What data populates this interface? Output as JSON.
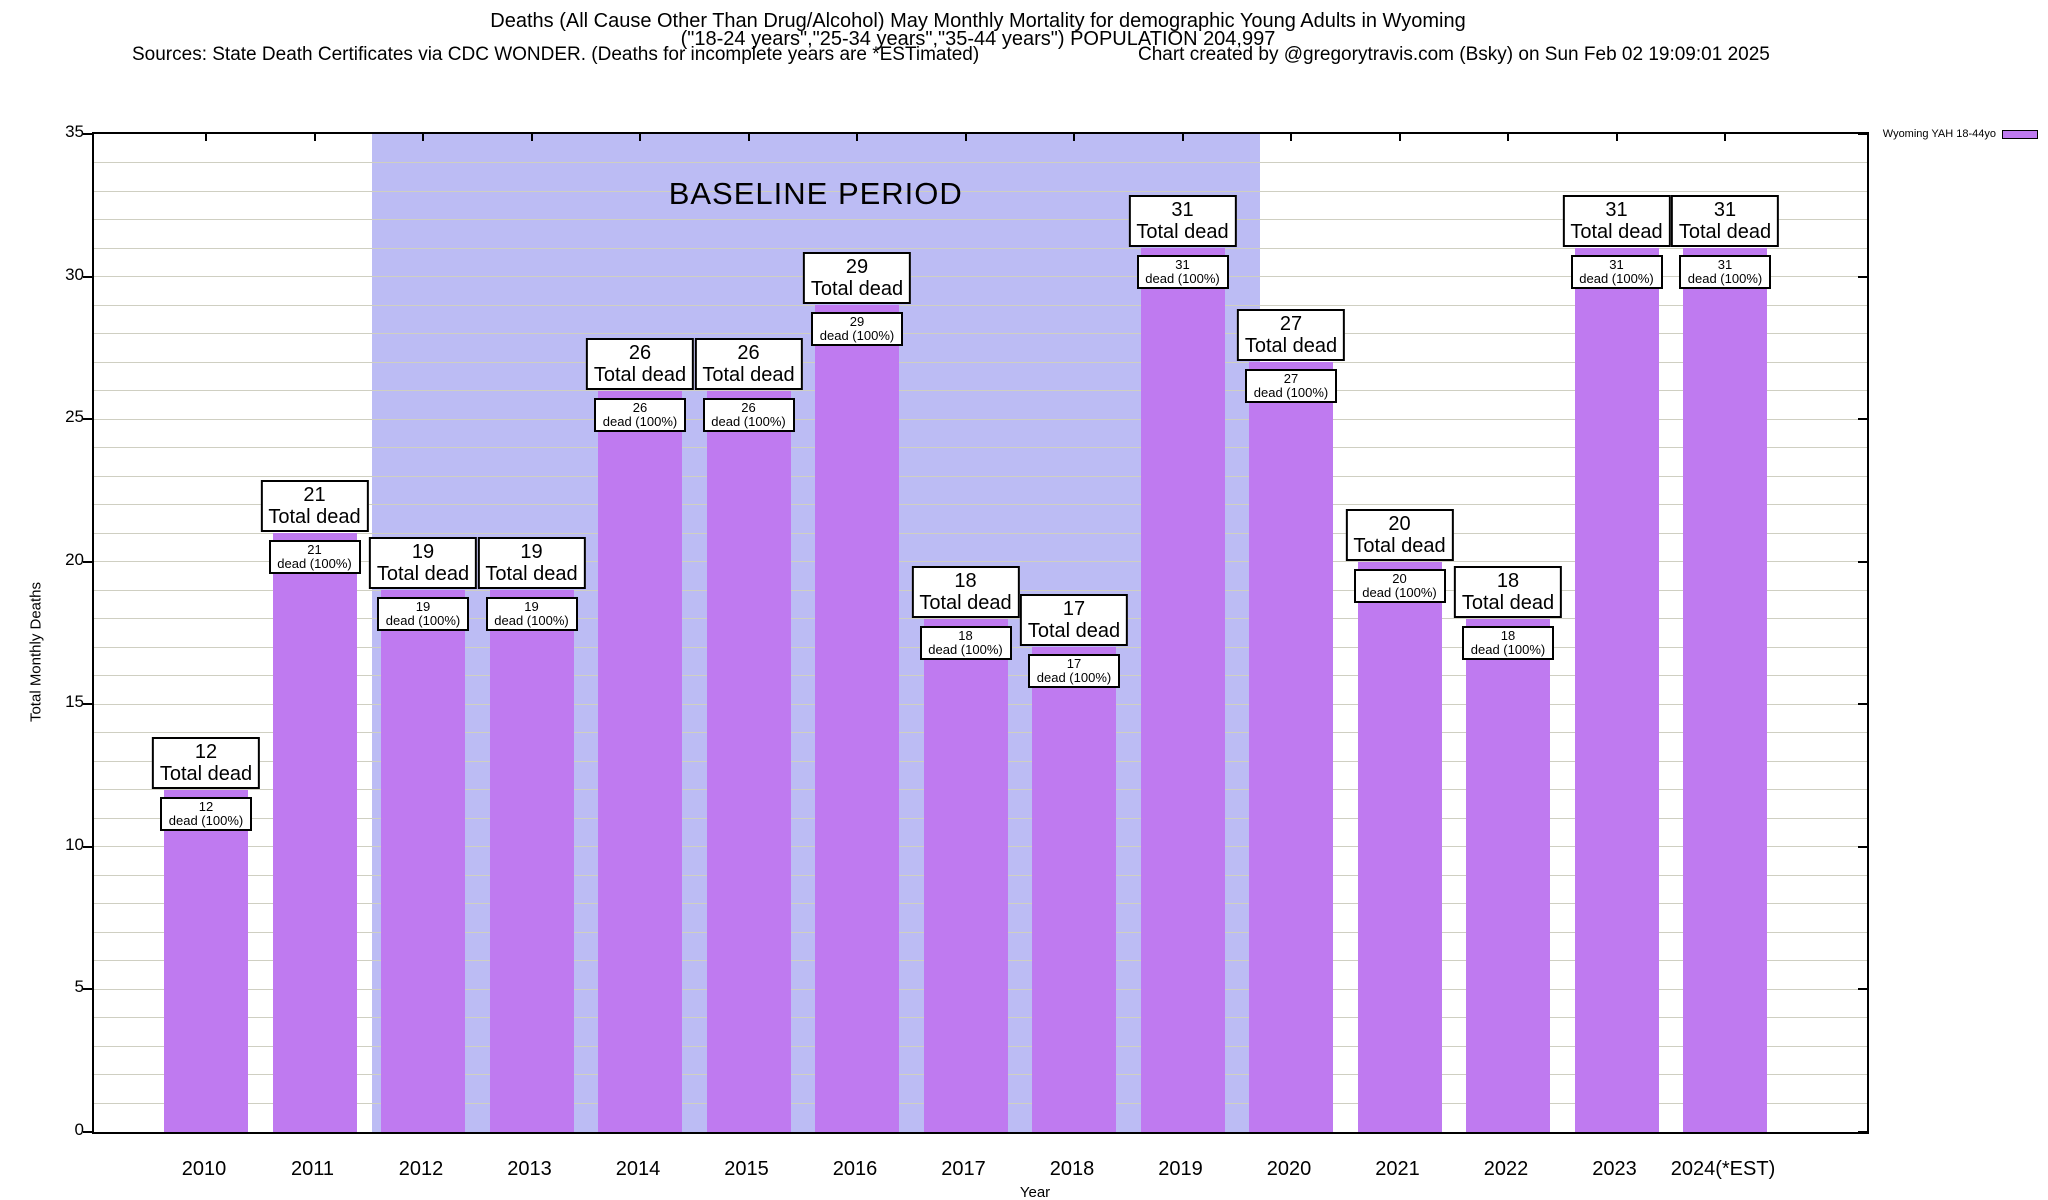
{
  "header": {
    "title_line1": "Deaths (All Cause Other Than Drug/Alcohol) May Monthly Mortality for demographic Young Adults in Wyoming",
    "title_line2": "(\"18-24 years\",\"25-34 years\",\"35-44 years\") POPULATION 204,997",
    "sources": "Sources: State Death Certificates via CDC WONDER. (Deaths for incomplete years are *ESTimated)",
    "credit": "Chart created by @gregorytravis.com (Bsky) on Sun Feb 02 19:09:01 2025"
  },
  "chart_data": {
    "type": "bar",
    "title": "Deaths (All Cause Other Than Drug/Alcohol) May Monthly Mortality for demographic Young Adults in Wyoming",
    "xlabel": "Year",
    "ylabel": "Total Monthly Deaths",
    "ylim": [
      0,
      35
    ],
    "ytick_step": 5,
    "grid_step": 1,
    "grid": "on",
    "categories": [
      "2010",
      "2011",
      "2012",
      "2013",
      "2014",
      "2015",
      "2016",
      "2017",
      "2018",
      "2019",
      "2020",
      "2021",
      "2022",
      "2023",
      "2024(*EST)"
    ],
    "series": [
      {
        "name": "Wyoming YAH 18-44yo",
        "values": [
          12,
          21,
          19,
          19,
          26,
          26,
          29,
          18,
          17,
          31,
          27,
          20,
          18,
          31,
          31
        ]
      }
    ],
    "bar_top_label_suffix": "Total dead",
    "bar_inner_label_suffix": "dead (100%)",
    "legend": {
      "label": "Wyoming YAH 18-44yo",
      "position": "top-right"
    },
    "baseline_region": {
      "label": "BASELINE PERIOD",
      "from_category": "2012",
      "to_category": "2019"
    },
    "colors": {
      "bar": "#bf7af0",
      "baseline_region": "#bcbcf4",
      "grid": "#cfcfc2",
      "axis": "#000000"
    }
  }
}
